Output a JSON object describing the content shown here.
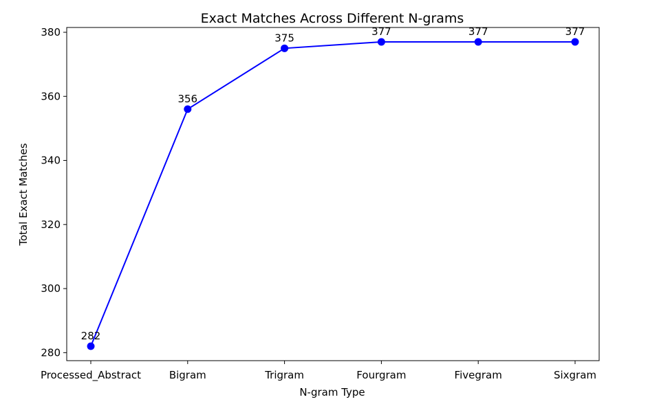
{
  "chart_data": {
    "type": "line",
    "title": "Exact Matches Across Different N-grams",
    "xlabel": "N-gram Type",
    "ylabel": "Total Exact Matches",
    "categories": [
      "Processed_Abstract",
      "Bigram",
      "Trigram",
      "Fourgram",
      "Fivegram",
      "Sixgram"
    ],
    "series": [
      {
        "values": [
          282,
          356,
          375,
          377,
          377,
          377
        ],
        "color": "#0000ff",
        "marker": "circle"
      }
    ],
    "data_labels": [
      "282",
      "356",
      "375",
      "377",
      "377",
      "377"
    ],
    "yticks": [
      280,
      300,
      320,
      340,
      360,
      380
    ],
    "ylim": [
      277.5,
      381.5
    ],
    "grid": false,
    "legend": "none"
  }
}
